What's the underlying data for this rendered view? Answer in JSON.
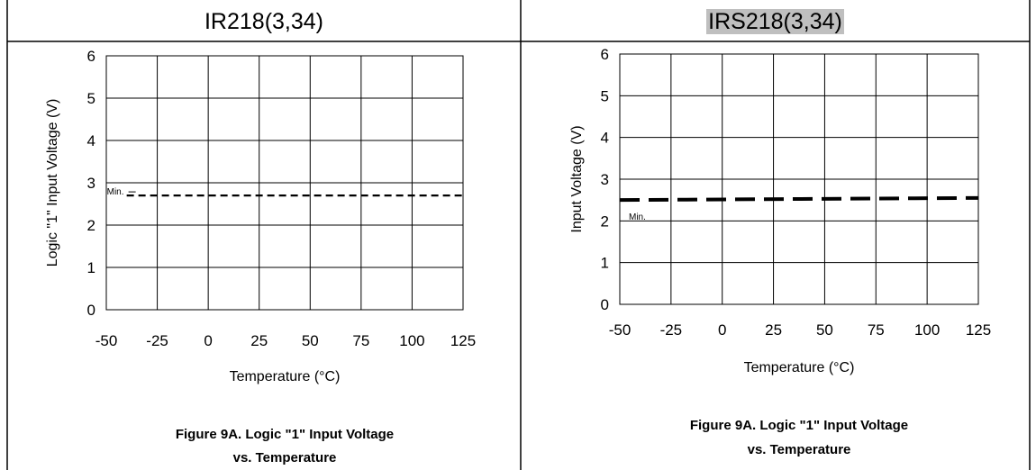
{
  "headers": {
    "left": "IR218(3,34)",
    "right": "IRS218(3,34)"
  },
  "chart_data": [
    {
      "type": "line",
      "xlabel": "Temperature (°C)",
      "ylabel": "Logic \"1\" Input Voltage (V)",
      "xlim": [
        -50,
        125
      ],
      "ylim": [
        0,
        6
      ],
      "x_ticks": [
        "-50",
        "-25",
        "0",
        "25",
        "50",
        "75",
        "100",
        "125"
      ],
      "y_ticks": [
        "0",
        "1",
        "2",
        "3",
        "4",
        "5",
        "6"
      ],
      "grid": true,
      "caption_line1": "Figure 9A. Logic \"1\" Input Voltage",
      "caption_line2": "vs. Temperature",
      "series": [
        {
          "name": "Min.",
          "x": [
            -40,
            125
          ],
          "y": [
            2.7,
            2.7
          ],
          "dash": "short"
        }
      ]
    },
    {
      "type": "line",
      "xlabel": "Temperature (°C)",
      "ylabel": "Input Voltage (V)",
      "xlim": [
        -50,
        125
      ],
      "ylim": [
        0,
        6
      ],
      "x_ticks": [
        "-50",
        "-25",
        "0",
        "25",
        "50",
        "75",
        "100",
        "125"
      ],
      "y_ticks": [
        "0",
        "1",
        "2",
        "3",
        "4",
        "5",
        "6"
      ],
      "grid": true,
      "caption_line1": "Figure 9A.  Logic \"1\" Input Voltage",
      "caption_line2": "vs. Temperature",
      "series": [
        {
          "name": "Min.",
          "x": [
            -50,
            125
          ],
          "y": [
            2.5,
            2.55
          ],
          "dash": "long"
        }
      ]
    }
  ]
}
